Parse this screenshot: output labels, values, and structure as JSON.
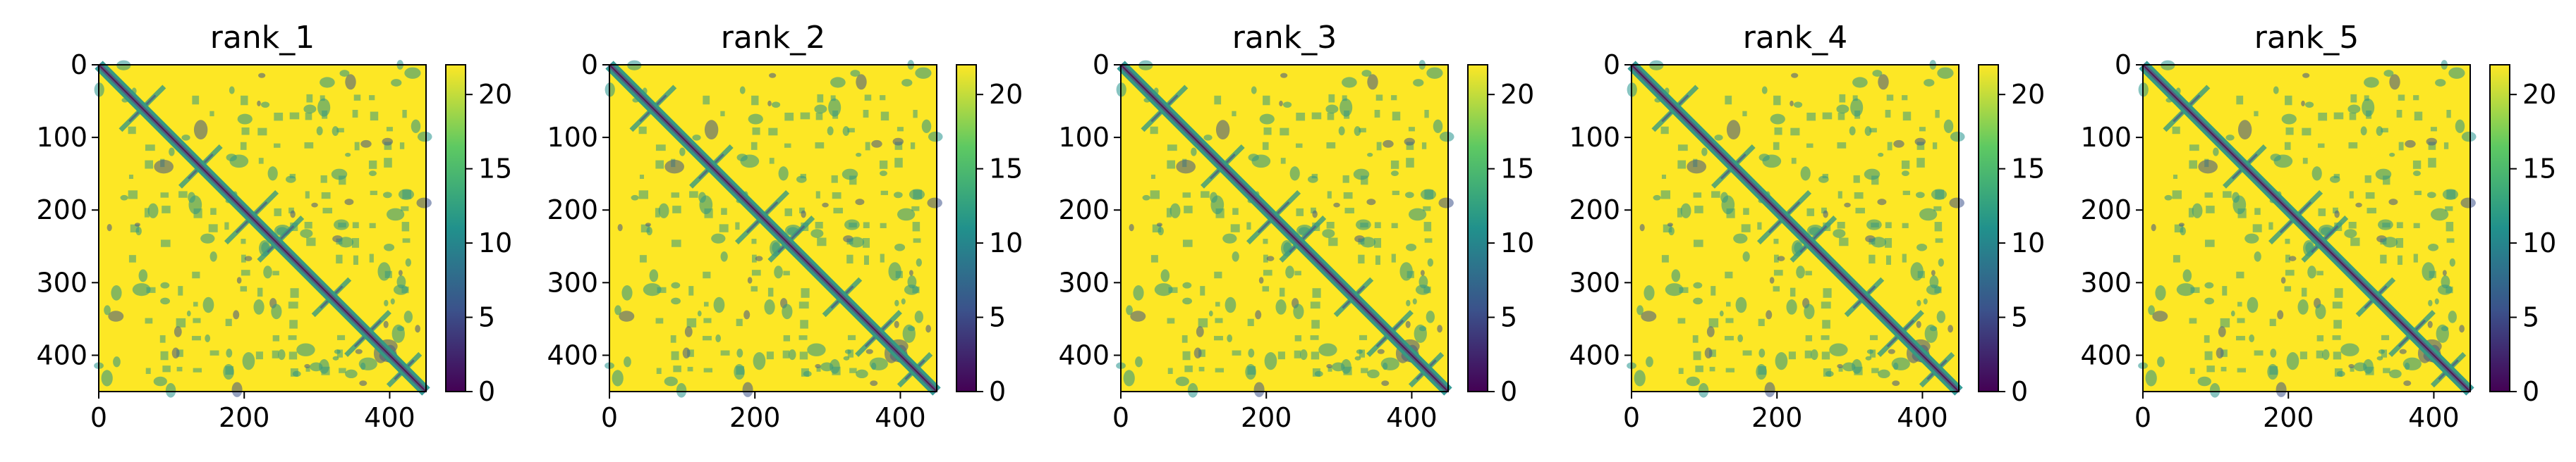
{
  "chart_data": [
    {
      "type": "heatmap",
      "title": "rank_1",
      "xticks": [
        0,
        200,
        400
      ],
      "yticks": [
        0,
        100,
        200,
        300,
        400
      ],
      "extent": [
        0,
        450
      ],
      "colorbar": {
        "ticks": [
          0,
          5,
          10,
          15,
          20
        ],
        "range": [
          0,
          22
        ],
        "colormap": "viridis"
      }
    },
    {
      "type": "heatmap",
      "title": "rank_2",
      "xticks": [
        0,
        200,
        400
      ],
      "yticks": [
        0,
        100,
        200,
        300,
        400
      ],
      "extent": [
        0,
        450
      ],
      "colorbar": {
        "ticks": [
          0,
          5,
          10,
          15,
          20
        ],
        "range": [
          0,
          22
        ],
        "colormap": "viridis"
      }
    },
    {
      "type": "heatmap",
      "title": "rank_3",
      "xticks": [
        0,
        200,
        400
      ],
      "yticks": [
        0,
        100,
        200,
        300,
        400
      ],
      "extent": [
        0,
        450
      ],
      "colorbar": {
        "ticks": [
          0,
          5,
          10,
          15,
          20
        ],
        "range": [
          0,
          22
        ],
        "colormap": "viridis"
      }
    },
    {
      "type": "heatmap",
      "title": "rank_4",
      "xticks": [
        0,
        200,
        400
      ],
      "yticks": [
        0,
        100,
        200,
        300,
        400
      ],
      "extent": [
        0,
        450
      ],
      "colorbar": {
        "ticks": [
          0,
          5,
          10,
          15,
          20
        ],
        "range": [
          0,
          22
        ],
        "colormap": "viridis"
      }
    },
    {
      "type": "heatmap",
      "title": "rank_5",
      "xticks": [
        0,
        200,
        400
      ],
      "yticks": [
        0,
        100,
        200,
        300,
        400
      ],
      "extent": [
        0,
        450
      ],
      "colorbar": {
        "ticks": [
          0,
          5,
          10,
          15,
          20
        ],
        "range": [
          0,
          22
        ],
        "colormap": "viridis"
      }
    }
  ],
  "colors": {
    "background_yellow": "#fde725",
    "teal": "#21918c",
    "dark_blue": "#3b528b",
    "deep_purple": "#440154"
  }
}
